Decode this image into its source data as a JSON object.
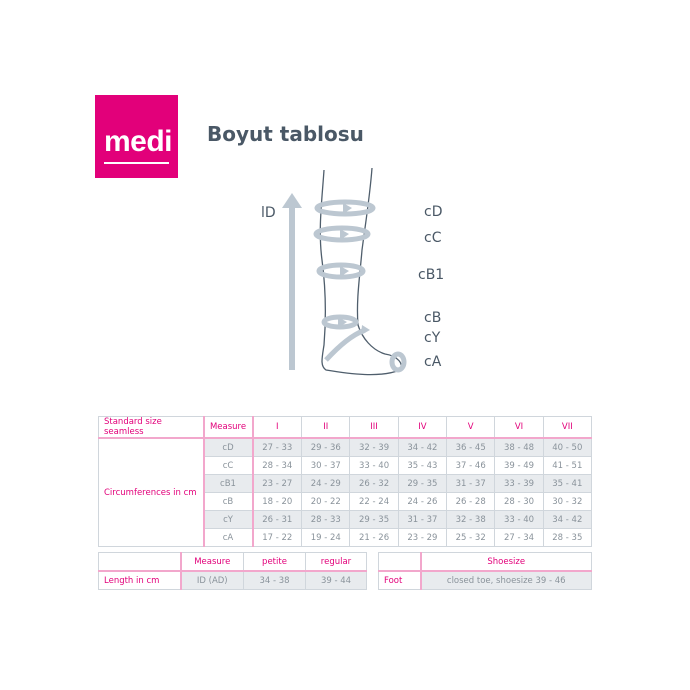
{
  "logo": {
    "text": "medi",
    "color": "#e2007a"
  },
  "title": "Boyut tablosu",
  "diagram": {
    "length_label": "lD",
    "labels": [
      "cD",
      "cC",
      "cB1",
      "cB",
      "cY",
      "cA"
    ]
  },
  "size_table": {
    "corner": "Standard size seamless",
    "measure_header": "Measure",
    "sizes": [
      "I",
      "II",
      "III",
      "IV",
      "V",
      "VI",
      "VII"
    ],
    "row_group": "Circumferences in cm",
    "rows": [
      {
        "measure": "cD",
        "values": [
          "27 - 33",
          "29 - 36",
          "32 - 39",
          "34 - 42",
          "36 - 45",
          "38 - 48",
          "40 - 50"
        ]
      },
      {
        "measure": "cC",
        "values": [
          "28 - 34",
          "30 - 37",
          "33 - 40",
          "35 - 43",
          "37 - 46",
          "39 - 49",
          "41 - 51"
        ]
      },
      {
        "measure": "cB1",
        "values": [
          "23 - 27",
          "24 - 29",
          "26 - 32",
          "29 - 35",
          "31 - 37",
          "33 - 39",
          "35 - 41"
        ]
      },
      {
        "measure": "cB",
        "values": [
          "18 - 20",
          "20 - 22",
          "22 - 24",
          "24 - 26",
          "26 - 28",
          "28 - 30",
          "30 - 32"
        ]
      },
      {
        "measure": "cY",
        "values": [
          "26 - 31",
          "28 - 33",
          "29 - 35",
          "31 - 37",
          "32 - 38",
          "33 - 40",
          "34 - 42"
        ]
      },
      {
        "measure": "cA",
        "values": [
          "17 - 22",
          "19 - 24",
          "21 - 26",
          "23 - 29",
          "25 - 32",
          "27 - 34",
          "28 - 35"
        ]
      }
    ]
  },
  "length_table": {
    "measure_header": "Measure",
    "petite_header": "petite",
    "regular_header": "regular",
    "row_label": "Length in cm",
    "measure": "ID (AD)",
    "petite": "34 - 38",
    "regular": "39 - 44"
  },
  "foot_table": {
    "header": "Shoesize",
    "row_label": "Foot",
    "value": "closed toe, shoesize 39 - 46"
  },
  "colors": {
    "accent": "#e2007a",
    "title": "#4a5866",
    "shade": "#e8ebee"
  }
}
